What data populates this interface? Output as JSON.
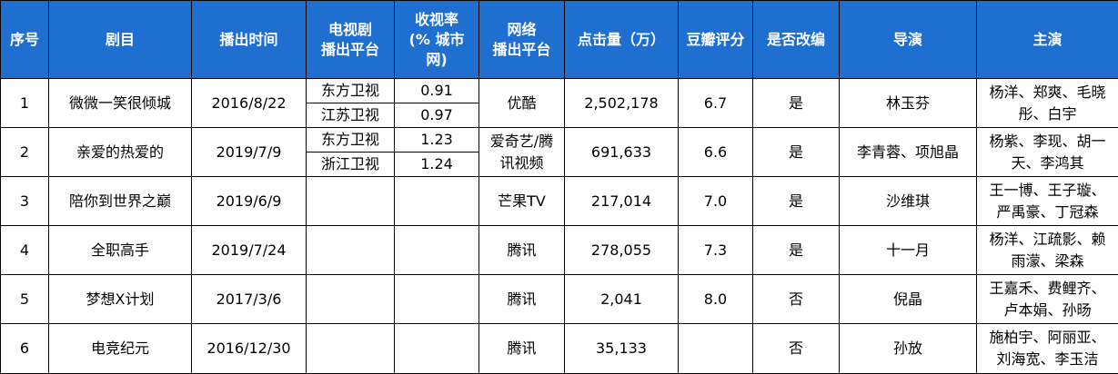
{
  "table": {
    "headers": {
      "index": "序号",
      "title": "剧目",
      "air_time": "播出时间",
      "tv_platform_l1": "电视剧",
      "tv_platform_l2": "播出平台",
      "rating_l1": "收视率",
      "rating_l2": "(% 城市",
      "rating_l3": "网)",
      "net_platform_l1": "网络",
      "net_platform_l2": "播出平台",
      "clicks": "点击量（万）",
      "douban": "豆瓣评分",
      "adapted": "是否改编",
      "director": "导演",
      "cast": "主演"
    },
    "rows": [
      {
        "index": "1",
        "title": "微微一笑很倾城",
        "air_time": "2016/8/22",
        "tv": [
          {
            "platform": "东方卫视",
            "rating": "0.91"
          },
          {
            "platform": "江苏卫视",
            "rating": "0.97"
          }
        ],
        "net_platform": "优酷",
        "clicks": "2,502,178",
        "douban": "6.7",
        "adapted": "是",
        "director": "林玉芬",
        "cast_l1": "杨洋、郑爽、毛晓",
        "cast_l2": "彤、白宇"
      },
      {
        "index": "2",
        "title": "亲爱的热爱的",
        "air_time": "2019/7/9",
        "tv": [
          {
            "platform": "东方卫视",
            "rating": "1.23"
          },
          {
            "platform": "浙江卫视",
            "rating": "1.24"
          }
        ],
        "net_platform_l1": "爱奇艺/腾",
        "net_platform_l2": "讯视频",
        "clicks": "691,633",
        "douban": "6.6",
        "adapted": "是",
        "director": "李青蓉、项旭晶",
        "cast_l1": "杨紫、李现、胡一",
        "cast_l2": "天、李鸿其"
      },
      {
        "index": "3",
        "title": "陪你到世界之巅",
        "air_time": "2019/6/9",
        "net_platform": "芒果TV",
        "clicks": "217,014",
        "douban": "7.0",
        "adapted": "是",
        "director": "沙维琪",
        "cast_l1": "王一博、王子璇、",
        "cast_l2": "严禹豪、丁冠森"
      },
      {
        "index": "4",
        "title": "全职高手",
        "air_time": "2019/7/24",
        "net_platform": "腾讯",
        "clicks": "278,055",
        "douban": "7.3",
        "adapted": "是",
        "director": "十一月",
        "cast_l1": "杨洋、江疏影、赖",
        "cast_l2": "雨濛、梁森"
      },
      {
        "index": "5",
        "title": "梦想X计划",
        "air_time": "2017/3/6",
        "net_platform": "腾讯",
        "clicks": "2,041",
        "douban": "8.0",
        "adapted": "否",
        "director": "倪晶",
        "cast_l1": "王嘉禾、费鲤齐、",
        "cast_l2": "卢本娟、孙旸"
      },
      {
        "index": "6",
        "title": "电竞纪元",
        "air_time": "2016/12/30",
        "net_platform": "腾讯",
        "clicks": "35,133",
        "douban": "",
        "adapted": "否",
        "director": "孙放",
        "cast_l1": "施柏宇、阿丽亚、",
        "cast_l2": "刘海宽、李玉洁"
      }
    ]
  },
  "colors": {
    "header_bg": "#1f6fd0",
    "header_text": "#ffffff",
    "border": "#000000"
  }
}
